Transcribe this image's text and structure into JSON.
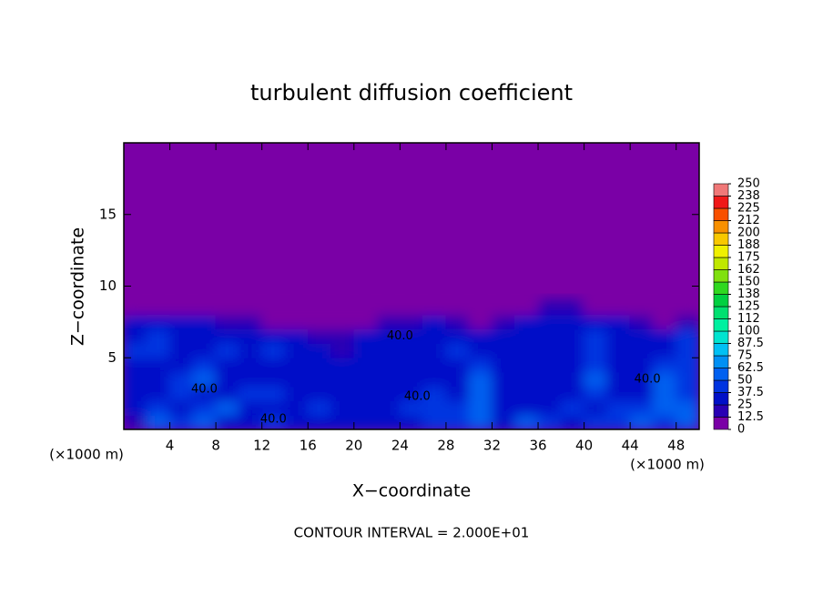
{
  "chart_data": {
    "type": "heatmap",
    "title": "turbulent diffusion coefficient",
    "x_label": "X−coordinate",
    "y_label": "Z−coordinate",
    "x_unit_left": "(×1000 m)",
    "x_unit_right": "(×1000 m)",
    "footnote": "CONTOUR INTERVAL = 2.000E+01",
    "xlim": [
      0,
      50
    ],
    "ylim": [
      0,
      20
    ],
    "xticks": [
      4,
      8,
      12,
      16,
      20,
      24,
      28,
      32,
      36,
      40,
      44,
      48
    ],
    "yticks": [
      5,
      10,
      15
    ],
    "background_color": "#7a00a6",
    "x": [
      1,
      3,
      5,
      7,
      9,
      11,
      13,
      15,
      17,
      19,
      21,
      23,
      25,
      27,
      29,
      31,
      33,
      35,
      37,
      39,
      41,
      43,
      45,
      47,
      49
    ],
    "z": [
      0.5,
      1.5,
      2.5,
      3.5,
      4.5,
      5.5,
      6.5,
      7.5,
      8.5
    ],
    "values": [
      [
        20,
        50,
        45,
        60,
        35,
        30,
        40,
        30,
        25,
        35,
        30,
        30,
        35,
        40,
        45,
        60,
        30,
        55,
        40,
        35,
        40,
        45,
        60,
        40,
        55
      ],
      [
        35,
        40,
        30,
        45,
        50,
        30,
        35,
        30,
        40,
        35,
        30,
        35,
        40,
        45,
        40,
        55,
        35,
        30,
        35,
        40,
        35,
        40,
        45,
        55,
        50
      ],
      [
        30,
        35,
        45,
        35,
        30,
        40,
        45,
        35,
        30,
        30,
        35,
        30,
        35,
        40,
        35,
        60,
        30,
        35,
        30,
        35,
        45,
        35,
        30,
        50,
        45
      ],
      [
        30,
        30,
        40,
        50,
        35,
        30,
        35,
        30,
        25,
        30,
        30,
        30,
        30,
        35,
        30,
        50,
        30,
        25,
        30,
        30,
        50,
        30,
        35,
        55,
        40
      ],
      [
        35,
        30,
        35,
        45,
        30,
        35,
        30,
        30,
        25,
        25,
        30,
        30,
        30,
        30,
        35,
        40,
        30,
        30,
        25,
        30,
        45,
        30,
        30,
        45,
        40
      ],
      [
        40,
        45,
        30,
        35,
        40,
        30,
        45,
        30,
        25,
        20,
        30,
        30,
        30,
        30,
        40,
        35,
        35,
        30,
        30,
        35,
        45,
        35,
        30,
        30,
        45
      ],
      [
        35,
        40,
        35,
        30,
        30,
        30,
        30,
        25,
        20,
        15,
        25,
        30,
        30,
        35,
        30,
        25,
        30,
        35,
        30,
        30,
        40,
        35,
        30,
        30,
        40
      ],
      [
        30,
        35,
        30,
        25,
        20,
        15,
        10,
        10,
        5,
        5,
        10,
        20,
        20,
        25,
        20,
        10,
        20,
        25,
        35,
        30,
        30,
        25,
        20,
        10,
        20
      ],
      [
        0,
        0,
        0,
        0,
        0,
        0,
        0,
        0,
        0,
        0,
        0,
        5,
        5,
        0,
        0,
        0,
        0,
        10,
        15,
        15,
        10,
        5,
        0,
        0,
        0
      ]
    ],
    "colorbar_ticks": [
      0,
      12.5,
      25,
      37.5,
      50,
      62.5,
      75,
      87.5,
      100,
      {
        "value": 112.5,
        "label": "112"
      },
      125,
      {
        "value": 137.5,
        "label": "138"
      },
      150,
      {
        "value": 162.5,
        "label": "162"
      },
      175,
      {
        "value": 187.5,
        "label": "188"
      },
      200,
      {
        "value": 212.5,
        "label": "212"
      },
      225,
      {
        "value": 237.5,
        "label": "238"
      },
      250
    ],
    "colors": [
      "#7a00a6",
      "#2a00b4",
      "#0010c8",
      "#0034e0",
      "#0060f0",
      "#0090f4",
      "#00c0f4",
      "#00e4d0",
      "#00f0a0",
      "#00e070",
      "#00d040",
      "#30d820",
      "#80e010",
      "#c0e800",
      "#f0f000",
      "#f8c800",
      "#f89000",
      "#f85000",
      "#f01818",
      "#f07878"
    ],
    "contour_labels": [
      {
        "x": 7,
        "z": 2.8,
        "label": "40.0"
      },
      {
        "x": 13,
        "z": 0.7,
        "label": "40.0"
      },
      {
        "x": 24,
        "z": 6.5,
        "label": "40.0"
      },
      {
        "x": 25.5,
        "z": 2.3,
        "label": "40.0"
      },
      {
        "x": 45.5,
        "z": 3.5,
        "label": "40.0"
      }
    ]
  }
}
